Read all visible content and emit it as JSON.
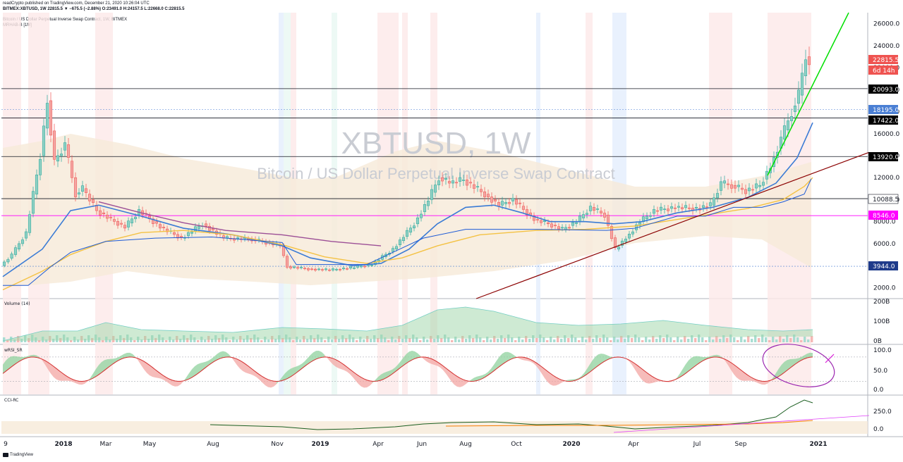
{
  "header": {
    "publisher_line": "readCrypto published on TradingView.com, December 21, 2020 10:26:04 UTC",
    "symbol_line": "BITMEX:XBTUSD, 1W  22815.5 ▼ −675.5 (−2.88%) O:23491.0 H:24157.5 L:22668.0 C:22815.5",
    "instrument_line": "Bitcoin / US Dollar Perpetual Inverse Swap Contract, 1W, BITMEX",
    "indicator_line": "MRHAB-B [1M]"
  },
  "watermark": {
    "symbol": "XBTUSD, 1W",
    "description": "Bitcoin / US Dollar Perpetual Inverse Swap Contract"
  },
  "price_axis": {
    "ticks": [
      "26000.0",
      "24000.0",
      "22000.0",
      "20000.0",
      "18000.0",
      "16000.0",
      "14000.0",
      "12000.0",
      "10000.0",
      "8000.0",
      "6000.0",
      "4000.0",
      "2000.0"
    ]
  },
  "tags": [
    {
      "label": "22815.5",
      "value": 22815.5,
      "bg": "#ef5350",
      "dark": false
    },
    {
      "label": "6d 14h",
      "value": 21800,
      "bg": "#ef5350",
      "dark": false
    },
    {
      "label": "20093.0",
      "value": 20093,
      "bg": "#000000",
      "dark": false
    },
    {
      "label": "18195.0",
      "value": 18195,
      "bg": "#4a7fd4",
      "dark": false
    },
    {
      "label": "17422.0",
      "value": 17422,
      "bg": "#000000",
      "dark": false
    },
    {
      "label": "13920.0",
      "value": 13920,
      "bg": "#000000",
      "dark": false
    },
    {
      "label": "10088.5",
      "value": 10088.5,
      "bg": "#ffffff",
      "dark": true
    },
    {
      "label": "8546.0",
      "value": 8546,
      "bg": "#ff00ff",
      "dark": false
    },
    {
      "label": "3944.0",
      "value": 3944,
      "bg": "#1e3a8a",
      "dark": false
    }
  ],
  "volume_pane": {
    "title": "Volume (14)",
    "ticks": [
      "200B",
      "100B",
      "0B"
    ]
  },
  "wrsi_pane": {
    "title": "wRSI_SR",
    "ticks": [
      "100.0",
      "50.0",
      "0.0"
    ]
  },
  "cci_pane": {
    "title": "CCI-RC",
    "ticks": [
      "250.0",
      "0.0"
    ]
  },
  "time_axis": {
    "labels": [
      {
        "text": "9",
        "bold": false
      },
      {
        "text": "2018",
        "bold": true
      },
      {
        "text": "Mar",
        "bold": false
      },
      {
        "text": "May",
        "bold": false
      },
      {
        "text": "Aug",
        "bold": false
      },
      {
        "text": "Nov",
        "bold": false
      },
      {
        "text": "2019",
        "bold": true
      },
      {
        "text": "Apr",
        "bold": false
      },
      {
        "text": "Jun",
        "bold": false
      },
      {
        "text": "Aug",
        "bold": false
      },
      {
        "text": "Oct",
        "bold": false
      },
      {
        "text": "2020",
        "bold": true
      },
      {
        "text": "Apr",
        "bold": false
      },
      {
        "text": "Jul",
        "bold": false
      },
      {
        "text": "Sep",
        "bold": false
      },
      {
        "text": "2021",
        "bold": true
      }
    ]
  },
  "footer": {
    "brand": "TradingView"
  },
  "colors": {
    "up": "#26a69a",
    "down": "#ef5350",
    "trend_green": "#00e000",
    "trend_dark": "#8b0000",
    "ema_fast": "#3a7bd5",
    "ema_slow": "#f4c244",
    "purple": "#9c4f96",
    "magenta": "#ff00ff"
  },
  "chart_data": {
    "type": "candlestick",
    "symbol": "XBTUSD",
    "interval": "1W",
    "ylim": [
      1000,
      27000
    ],
    "x": [
      "2017-09",
      "2017-11",
      "2018-01",
      "2018-03",
      "2018-05",
      "2018-08",
      "2018-11",
      "2019-01",
      "2019-04",
      "2019-06",
      "2019-08",
      "2019-10",
      "2020-01",
      "2020-04",
      "2020-07",
      "2020-09",
      "2020-12"
    ],
    "close": [
      4000,
      6500,
      11000,
      9000,
      8000,
      6500,
      4000,
      3600,
      5200,
      10500,
      10500,
      8500,
      8500,
      7000,
      9800,
      10700,
      22815.5
    ],
    "horizontal_levels": [
      20093,
      17422,
      13920,
      10088.5,
      8546,
      3944,
      18195
    ]
  }
}
